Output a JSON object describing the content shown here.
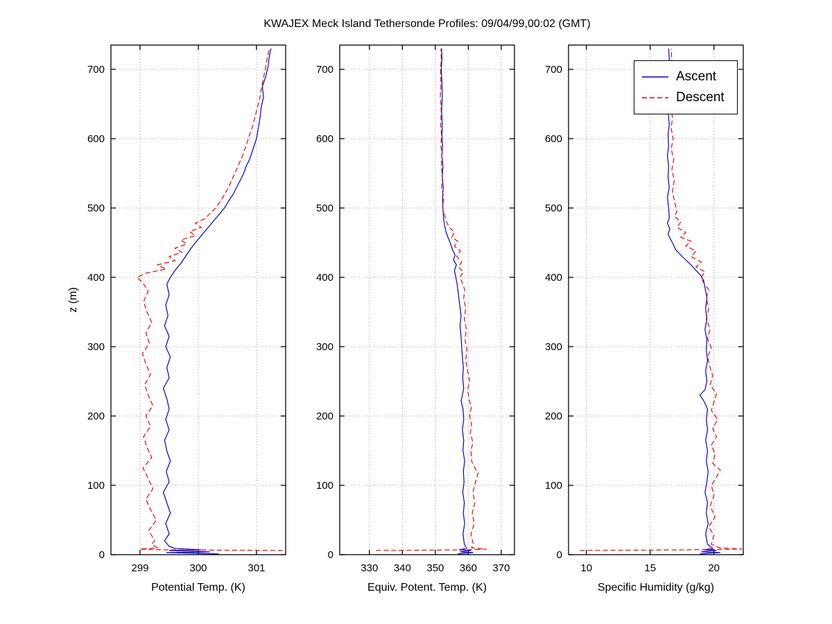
{
  "title": "KWAJEX Meck Island Tethersonde Profiles: 09/04/99,00:02 (GMT)",
  "legend": {
    "entries": [
      {
        "label": "Ascent",
        "color": "#0000cc",
        "style": "solid"
      },
      {
        "label": "Descent",
        "color": "#ee0000",
        "style": "dashed"
      }
    ]
  },
  "grid_color": "#999999",
  "axis_color": "#000000",
  "chart_data": [
    {
      "type": "line",
      "xlabel": "Potential Temp. (K)",
      "ylabel": "z (m)",
      "xlim": [
        298.5,
        301.5
      ],
      "ylim": [
        0,
        735
      ],
      "xticks": [
        299,
        300,
        301
      ],
      "yticks": [
        0,
        100,
        200,
        300,
        400,
        500,
        600,
        700
      ],
      "grid": true,
      "legend_position": "none",
      "series": [
        {
          "name": "Ascent",
          "color": "#0000cc",
          "style": "solid",
          "x": [
            300.35,
            299.45,
            300.2,
            299.5,
            300.05,
            299.6,
            299.5,
            299.42,
            299.5,
            299.44,
            299.52,
            299.46,
            299.4,
            299.5,
            299.45,
            299.52,
            299.46,
            299.42,
            299.5,
            299.44,
            299.5,
            299.46,
            299.4,
            299.5,
            299.46,
            299.52,
            299.44,
            299.5,
            299.42,
            299.48,
            299.44,
            299.5,
            299.46,
            299.52,
            299.6,
            299.7,
            299.78,
            299.86,
            299.95,
            300.05,
            300.15,
            300.25,
            300.35,
            300.45,
            300.52,
            300.6,
            300.66,
            300.72,
            300.78,
            300.82,
            300.88,
            300.92,
            300.96,
            301.0,
            301.03,
            301.06,
            301.08,
            301.12,
            301.1,
            301.16,
            301.2,
            301.22,
            301.25
          ],
          "y": [
            1,
            3,
            4,
            6,
            7,
            9,
            12,
            20,
            30,
            45,
            60,
            75,
            90,
            105,
            120,
            135,
            150,
            165,
            180,
            195,
            210,
            225,
            240,
            255,
            270,
            285,
            300,
            315,
            330,
            345,
            360,
            375,
            390,
            400,
            410,
            420,
            430,
            440,
            450,
            460,
            470,
            480,
            490,
            500,
            510,
            520,
            530,
            540,
            550,
            560,
            570,
            580,
            590,
            600,
            615,
            630,
            645,
            660,
            675,
            690,
            705,
            720,
            730
          ]
        },
        {
          "name": "Descent",
          "color": "#ee0000",
          "style": "dashed",
          "x": [
            301.45,
            300.3,
            299.4,
            299.0,
            299.3,
            299.2,
            299.25,
            299.15,
            299.28,
            299.18,
            299.1,
            299.22,
            299.14,
            299.05,
            299.2,
            299.12,
            299.06,
            299.18,
            299.1,
            299.22,
            299.14,
            299.08,
            299.18,
            299.1,
            299.04,
            299.16,
            299.1,
            299.2,
            299.12,
            299.06,
            299.14,
            299.05,
            298.95,
            299.1,
            299.45,
            299.3,
            299.6,
            299.5,
            299.72,
            299.6,
            299.8,
            299.7,
            299.95,
            299.85,
            300.05,
            299.95,
            300.12,
            300.2,
            300.3,
            300.42,
            300.52,
            300.6,
            300.68,
            300.76,
            300.82,
            300.88,
            300.94,
            301.0,
            301.06,
            301.1,
            301.15,
            301.18,
            301.22
          ],
          "y": [
            6,
            6.5,
            7,
            8,
            10,
            15,
            20,
            35,
            50,
            65,
            80,
            95,
            110,
            125,
            140,
            155,
            170,
            185,
            200,
            215,
            230,
            245,
            260,
            275,
            290,
            305,
            320,
            335,
            350,
            365,
            380,
            392,
            400,
            406,
            412,
            418,
            424,
            430,
            436,
            442,
            448,
            454,
            460,
            466,
            472,
            478,
            485,
            492,
            500,
            515,
            530,
            545,
            560,
            575,
            590,
            605,
            620,
            640,
            660,
            680,
            700,
            715,
            730
          ]
        }
      ]
    },
    {
      "type": "line",
      "xlabel": "Equiv. Potent. Temp. (K)",
      "ylabel": "z (m)",
      "xlim": [
        321,
        374
      ],
      "ylim": [
        0,
        735
      ],
      "xticks": [
        330,
        340,
        350,
        360,
        370
      ],
      "yticks": [
        0,
        100,
        200,
        300,
        400,
        500,
        600,
        700
      ],
      "grid": true,
      "legend_position": "none",
      "series": [
        {
          "name": "Ascent",
          "color": "#0000cc",
          "style": "solid",
          "x": [
            356.8,
            361.5,
            357.5,
            360.8,
            357.2,
            359.5,
            358.8,
            358.4,
            358.9,
            358.5,
            358.8,
            358.3,
            358.7,
            358.5,
            358.9,
            358.4,
            358.6,
            358.2,
            358.6,
            358.4,
            357.8,
            358.2,
            358.6,
            358.3,
            358.5,
            358.2,
            358.0,
            357.8,
            357.5,
            357.8,
            357.4,
            357.0,
            356.6,
            356.2,
            355.8,
            356.4,
            355.5,
            356.0,
            355.2,
            354.5,
            353.8,
            353.2,
            352.8,
            352.5,
            352.3,
            352.2,
            352.4,
            352.1,
            352.3,
            352.0,
            352.2,
            352.0,
            352.1,
            351.9,
            352.1,
            352.0,
            351.8,
            352.0,
            351.9
          ],
          "y": [
            1,
            3,
            4,
            6,
            7,
            9,
            15,
            30,
            45,
            60,
            75,
            90,
            105,
            120,
            135,
            150,
            165,
            180,
            195,
            210,
            222,
            230,
            240,
            255,
            270,
            285,
            300,
            315,
            330,
            345,
            360,
            375,
            390,
            400,
            410,
            418,
            425,
            432,
            440,
            450,
            458,
            466,
            475,
            485,
            500,
            515,
            530,
            545,
            560,
            575,
            590,
            605,
            620,
            640,
            660,
            680,
            700,
            715,
            730
          ]
        },
        {
          "name": "Descent",
          "color": "#ee0000",
          "style": "dashed",
          "x": [
            332.0,
            348.0,
            360.0,
            365.5,
            361.0,
            361.5,
            360.8,
            361.8,
            361.2,
            362.0,
            361.4,
            362.2,
            363.0,
            362.0,
            361.0,
            360.8,
            361.4,
            360.6,
            361.0,
            360.4,
            360.9,
            360.2,
            359.8,
            360.4,
            359.8,
            359.2,
            359.6,
            359.0,
            359.4,
            358.8,
            359.2,
            358.6,
            358.9,
            358.2,
            357.5,
            358.5,
            357.0,
            358.0,
            356.5,
            357.6,
            355.8,
            356.8,
            355.0,
            355.8,
            354.2,
            353.4,
            352.8,
            352.2,
            352.5,
            351.9,
            352.2,
            351.8,
            352.0,
            351.7,
            351.9,
            351.6,
            351.8,
            351.5,
            351.7,
            351.6,
            351.8,
            351.7
          ],
          "y": [
            6,
            6.5,
            7,
            8,
            10,
            15,
            30,
            45,
            60,
            75,
            90,
            105,
            118,
            125,
            135,
            150,
            162,
            175,
            188,
            200,
            212,
            225,
            238,
            250,
            265,
            280,
            295,
            310,
            325,
            340,
            355,
            370,
            382,
            392,
            400,
            408,
            415,
            422,
            430,
            438,
            445,
            452,
            458,
            465,
            472,
            480,
            490,
            500,
            515,
            530,
            545,
            560,
            575,
            590,
            605,
            620,
            640,
            660,
            680,
            700,
            715,
            730
          ]
        }
      ]
    },
    {
      "type": "line",
      "xlabel": "Specific Humidity (g/kg)",
      "ylabel": "z (m)",
      "xlim": [
        8.6,
        22.3
      ],
      "ylim": [
        0,
        735
      ],
      "xticks": [
        10,
        15,
        20
      ],
      "yticks": [
        0,
        100,
        200,
        300,
        400,
        500,
        600,
        700
      ],
      "grid": true,
      "legend_position": "top-right",
      "series": [
        {
          "name": "Ascent",
          "color": "#0000cc",
          "style": "solid",
          "x": [
            18.9,
            20.5,
            19.0,
            20.2,
            19.2,
            19.9,
            19.5,
            19.35,
            19.55,
            19.4,
            19.5,
            19.3,
            19.45,
            19.55,
            19.4,
            19.5,
            19.35,
            19.5,
            19.4,
            19.5,
            19.2,
            18.9,
            19.3,
            19.45,
            19.35,
            19.5,
            19.4,
            19.45,
            19.3,
            19.45,
            19.35,
            19.45,
            19.3,
            19.2,
            19.0,
            18.6,
            18.2,
            17.8,
            17.4,
            17.0,
            16.8,
            16.6,
            16.4,
            16.55,
            16.35,
            16.5,
            16.45,
            16.35,
            16.5,
            16.4,
            16.45,
            16.35,
            16.45,
            16.4,
            16.5,
            16.4,
            16.45,
            16.5,
            16.4,
            16.5,
            16.45
          ],
          "y": [
            1,
            3,
            4,
            6,
            7,
            9,
            15,
            30,
            45,
            60,
            75,
            90,
            105,
            120,
            135,
            150,
            165,
            180,
            195,
            210,
            222,
            230,
            238,
            250,
            265,
            280,
            295,
            310,
            325,
            340,
            355,
            370,
            385,
            395,
            402,
            410,
            418,
            425,
            432,
            440,
            448,
            455,
            462,
            470,
            478,
            486,
            500,
            515,
            530,
            545,
            560,
            575,
            590,
            605,
            620,
            640,
            660,
            680,
            700,
            715,
            730
          ]
        },
        {
          "name": "Descent",
          "color": "#ee0000",
          "style": "dashed",
          "x": [
            9.5,
            14.0,
            18.0,
            22.2,
            20.4,
            19.8,
            20.0,
            19.6,
            20.1,
            19.7,
            20.0,
            19.8,
            20.3,
            20.5,
            19.9,
            20.1,
            19.8,
            20.2,
            19.9,
            20.3,
            19.8,
            20.0,
            20.2,
            19.7,
            19.9,
            19.7,
            19.5,
            19.8,
            19.5,
            19.7,
            19.4,
            19.6,
            19.4,
            19.6,
            19.2,
            19.0,
            19.3,
            18.6,
            19.0,
            18.2,
            18.6,
            17.8,
            18.2,
            17.4,
            17.8,
            17.1,
            17.4,
            16.9,
            17.1,
            16.9,
            16.75,
            16.9,
            16.7,
            16.85,
            16.65,
            16.8,
            16.65,
            16.75,
            16.6,
            16.7,
            16.6,
            16.7,
            16.65
          ],
          "y": [
            6,
            6.5,
            7,
            8,
            10,
            15,
            28,
            40,
            55,
            70,
            85,
            100,
            115,
            122,
            132,
            145,
            158,
            170,
            182,
            195,
            208,
            220,
            232,
            245,
            258,
            270,
            285,
            298,
            312,
            325,
            340,
            355,
            370,
            382,
            392,
            400,
            408,
            415,
            422,
            430,
            438,
            445,
            452,
            458,
            465,
            472,
            480,
            488,
            495,
            510,
            525,
            540,
            555,
            570,
            585,
            600,
            615,
            630,
            650,
            670,
            690,
            710,
            730
          ]
        }
      ]
    }
  ]
}
